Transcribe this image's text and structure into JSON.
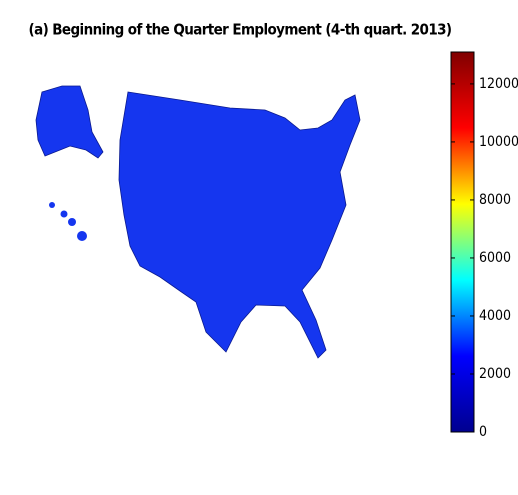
{
  "chart_data": {
    "type": "choropleth",
    "title": "(a) Beginning of the Quarter Employment (4-th quart. 2013)",
    "colorbar": {
      "clim": [
        0,
        13100
      ],
      "ticks": [
        0,
        2000,
        4000,
        6000,
        8000,
        10000,
        12000
      ],
      "colormap": [
        "#00008f",
        "#0000ff",
        "#00ffff",
        "#ffff00",
        "#ff0000",
        "#800000"
      ]
    },
    "region_color": "#1536ef"
  }
}
